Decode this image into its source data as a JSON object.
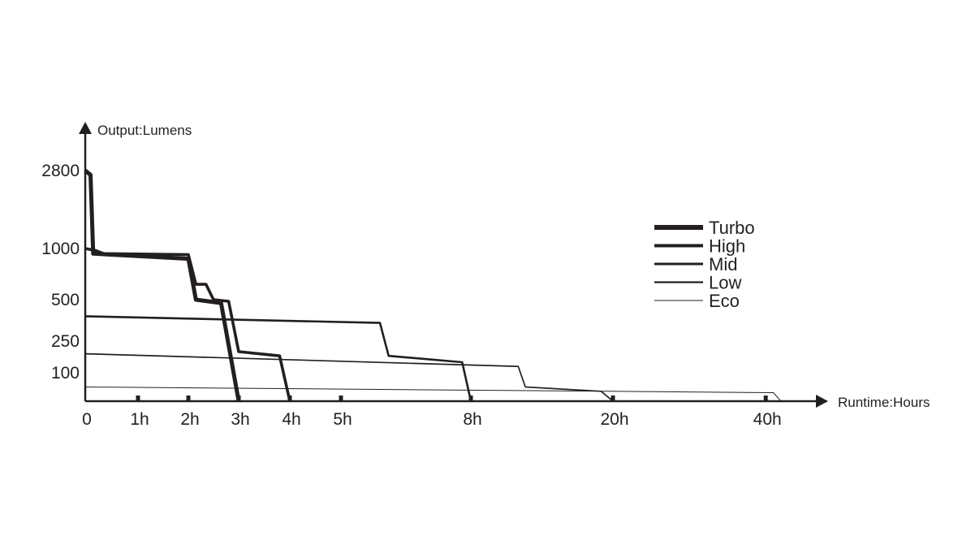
{
  "chart_data": {
    "type": "line",
    "title": "",
    "xlabel": "Runtime:Hours",
    "ylabel": "Output:Lumens",
    "x_axis_scale": "non-linear (labelled hours)",
    "y_axis_scale": "non-linear (labelled lumens)",
    "x_ticks": [
      "0",
      "1h",
      "2h",
      "3h",
      "4h",
      "5h",
      "8h",
      "20h",
      "40h"
    ],
    "y_ticks": [
      "2800",
      "1000",
      "500",
      "250",
      "100"
    ],
    "grid": false,
    "legend_position": "right",
    "colors": {
      "ink": "#231f20"
    },
    "series": [
      {
        "name": "Turbo",
        "points": [
          [
            0,
            2800
          ],
          [
            0.1,
            2700
          ],
          [
            0.15,
            950
          ],
          [
            2,
            900
          ],
          [
            2.15,
            500
          ],
          [
            2.65,
            480
          ],
          [
            3,
            0
          ]
        ]
      },
      {
        "name": "High",
        "points": [
          [
            0,
            1000
          ],
          [
            0.2,
            980
          ],
          [
            0.35,
            950
          ],
          [
            2,
            940
          ],
          [
            2.15,
            650
          ],
          [
            2.35,
            650
          ],
          [
            2.5,
            500
          ],
          [
            2.8,
            490
          ],
          [
            3,
            200
          ],
          [
            3.8,
            180
          ],
          [
            4,
            0
          ]
        ]
      },
      {
        "name": "Mid",
        "points": [
          [
            0,
            400
          ],
          [
            5.9,
            360
          ],
          [
            6.1,
            180
          ],
          [
            7.8,
            150
          ],
          [
            8,
            0
          ]
        ]
      },
      {
        "name": "Low",
        "points": [
          [
            0,
            190
          ],
          [
            12,
            130
          ],
          [
            12.6,
            50
          ],
          [
            19,
            35
          ],
          [
            20,
            0
          ]
        ]
      },
      {
        "name": "Eco",
        "points": [
          [
            0,
            50
          ],
          [
            41,
            30
          ],
          [
            42,
            0
          ]
        ]
      }
    ]
  }
}
